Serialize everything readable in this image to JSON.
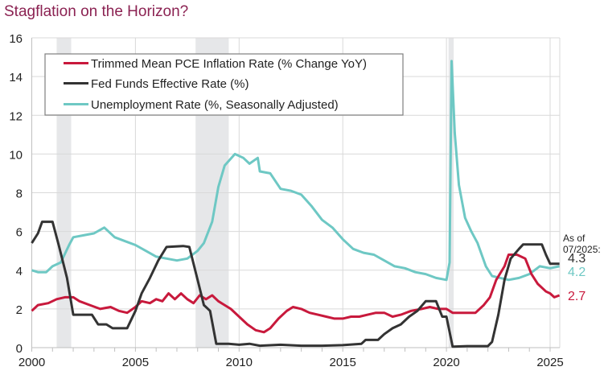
{
  "chart_data": {
    "type": "line",
    "title": "Stagflation on the Horizon?",
    "xlabel": "",
    "ylabel": "",
    "xlim": [
      2000,
      2025.45
    ],
    "ylim": [
      0,
      16
    ],
    "x_ticks": [
      "2000",
      "2005",
      "2010",
      "2015",
      "2020",
      "2025"
    ],
    "x_tick_values": [
      2000,
      2005,
      2010,
      2015,
      2020,
      2025
    ],
    "y_ticks": [
      "0",
      "2",
      "4",
      "6",
      "8",
      "10",
      "12",
      "14",
      "16"
    ],
    "y_tick_values": [
      0,
      2,
      4,
      6,
      8,
      10,
      12,
      14,
      16
    ],
    "grid": true,
    "legend_position": "top-left",
    "recessions": [
      [
        2001.2,
        2001.9
      ],
      [
        2007.9,
        2009.5
      ],
      [
        2020.1,
        2020.35
      ]
    ],
    "series": [
      {
        "name": "Trimmed Mean PCE Inflation Rate (% Change YoY)",
        "color": "#c8193c",
        "points": [
          [
            2000,
            1.9
          ],
          [
            2000.3,
            2.2
          ],
          [
            2000.8,
            2.3
          ],
          [
            2001.2,
            2.5
          ],
          [
            2001.6,
            2.6
          ],
          [
            2002,
            2.6
          ],
          [
            2002.3,
            2.4
          ],
          [
            2002.8,
            2.2
          ],
          [
            2003.3,
            2.0
          ],
          [
            2003.8,
            2.1
          ],
          [
            2004.2,
            1.9
          ],
          [
            2004.6,
            1.8
          ],
          [
            2005,
            2.1
          ],
          [
            2005.3,
            2.4
          ],
          [
            2005.7,
            2.3
          ],
          [
            2006,
            2.5
          ],
          [
            2006.3,
            2.4
          ],
          [
            2006.6,
            2.8
          ],
          [
            2006.9,
            2.5
          ],
          [
            2007.2,
            2.8
          ],
          [
            2007.5,
            2.5
          ],
          [
            2007.8,
            2.3
          ],
          [
            2008.1,
            2.7
          ],
          [
            2008.4,
            2.5
          ],
          [
            2008.7,
            2.7
          ],
          [
            2009,
            2.4
          ],
          [
            2009.3,
            2.2
          ],
          [
            2009.6,
            2.0
          ],
          [
            2010,
            1.6
          ],
          [
            2010.4,
            1.2
          ],
          [
            2010.8,
            0.9
          ],
          [
            2011.2,
            0.8
          ],
          [
            2011.5,
            1.0
          ],
          [
            2011.9,
            1.5
          ],
          [
            2012.3,
            1.9
          ],
          [
            2012.6,
            2.1
          ],
          [
            2013,
            2.0
          ],
          [
            2013.4,
            1.8
          ],
          [
            2013.8,
            1.7
          ],
          [
            2014.2,
            1.6
          ],
          [
            2014.6,
            1.5
          ],
          [
            2015,
            1.5
          ],
          [
            2015.4,
            1.6
          ],
          [
            2015.8,
            1.6
          ],
          [
            2016.2,
            1.7
          ],
          [
            2016.6,
            1.8
          ],
          [
            2017,
            1.8
          ],
          [
            2017.4,
            1.6
          ],
          [
            2017.8,
            1.7
          ],
          [
            2018.3,
            1.9
          ],
          [
            2018.8,
            2.0
          ],
          [
            2019.2,
            2.1
          ],
          [
            2019.6,
            2.0
          ],
          [
            2020,
            2.0
          ],
          [
            2020.3,
            1.8
          ],
          [
            2020.6,
            1.8
          ],
          [
            2021,
            1.8
          ],
          [
            2021.4,
            1.8
          ],
          [
            2021.8,
            2.2
          ],
          [
            2022.1,
            2.6
          ],
          [
            2022.4,
            3.5
          ],
          [
            2022.8,
            4.2
          ],
          [
            2023,
            4.8
          ],
          [
            2023.4,
            4.8
          ],
          [
            2023.8,
            4.6
          ],
          [
            2024.1,
            3.8
          ],
          [
            2024.4,
            3.3
          ],
          [
            2024.8,
            2.9
          ],
          [
            2025,
            2.8
          ],
          [
            2025.2,
            2.6
          ],
          [
            2025.45,
            2.7
          ]
        ]
      },
      {
        "name": "Fed Funds Effective Rate (%)",
        "color": "#333333",
        "points": [
          [
            2000,
            5.4
          ],
          [
            2000.3,
            5.9
          ],
          [
            2000.5,
            6.5
          ],
          [
            2001,
            6.5
          ],
          [
            2001.3,
            5.3
          ],
          [
            2001.7,
            3.6
          ],
          [
            2002,
            1.7
          ],
          [
            2002.3,
            1.7
          ],
          [
            2002.9,
            1.7
          ],
          [
            2003.2,
            1.2
          ],
          [
            2003.6,
            1.2
          ],
          [
            2003.9,
            1.0
          ],
          [
            2004.6,
            1.0
          ],
          [
            2005,
            1.9
          ],
          [
            2005.3,
            2.8
          ],
          [
            2005.7,
            3.6
          ],
          [
            2006.1,
            4.5
          ],
          [
            2006.5,
            5.2
          ],
          [
            2007.3,
            5.25
          ],
          [
            2007.6,
            5.2
          ],
          [
            2008,
            3.5
          ],
          [
            2008.3,
            2.2
          ],
          [
            2008.6,
            1.9
          ],
          [
            2008.9,
            0.2
          ],
          [
            2009.5,
            0.2
          ],
          [
            2010,
            0.15
          ],
          [
            2010.5,
            0.2
          ],
          [
            2011,
            0.1
          ],
          [
            2012,
            0.15
          ],
          [
            2013,
            0.1
          ],
          [
            2014,
            0.1
          ],
          [
            2015,
            0.13
          ],
          [
            2015.9,
            0.2
          ],
          [
            2016.1,
            0.4
          ],
          [
            2016.7,
            0.4
          ],
          [
            2017,
            0.7
          ],
          [
            2017.4,
            1.0
          ],
          [
            2017.8,
            1.2
          ],
          [
            2018.2,
            1.6
          ],
          [
            2018.6,
            1.9
          ],
          [
            2019,
            2.4
          ],
          [
            2019.5,
            2.4
          ],
          [
            2019.8,
            1.6
          ],
          [
            2020,
            1.6
          ],
          [
            2020.3,
            0.05
          ],
          [
            2021,
            0.08
          ],
          [
            2022,
            0.08
          ],
          [
            2022.2,
            0.3
          ],
          [
            2022.5,
            1.7
          ],
          [
            2022.8,
            3.5
          ],
          [
            2023.1,
            4.6
          ],
          [
            2023.5,
            5.1
          ],
          [
            2023.7,
            5.33
          ],
          [
            2024.6,
            5.33
          ],
          [
            2024.8,
            4.8
          ],
          [
            2025,
            4.33
          ],
          [
            2025.45,
            4.33
          ]
        ]
      },
      {
        "name": "Unemployment Rate (%, Seasonally Adjusted)",
        "color": "#6ec8c4",
        "points": [
          [
            2000,
            4.0
          ],
          [
            2000.3,
            3.9
          ],
          [
            2000.7,
            3.9
          ],
          [
            2001,
            4.2
          ],
          [
            2001.4,
            4.4
          ],
          [
            2001.8,
            5.3
          ],
          [
            2002,
            5.7
          ],
          [
            2002.5,
            5.8
          ],
          [
            2003,
            5.9
          ],
          [
            2003.5,
            6.2
          ],
          [
            2004,
            5.7
          ],
          [
            2004.5,
            5.5
          ],
          [
            2005,
            5.3
          ],
          [
            2005.5,
            5.0
          ],
          [
            2006,
            4.7
          ],
          [
            2006.5,
            4.6
          ],
          [
            2007,
            4.5
          ],
          [
            2007.5,
            4.6
          ],
          [
            2008,
            5.0
          ],
          [
            2008.3,
            5.4
          ],
          [
            2008.7,
            6.5
          ],
          [
            2009,
            8.3
          ],
          [
            2009.3,
            9.4
          ],
          [
            2009.8,
            10.0
          ],
          [
            2010.2,
            9.8
          ],
          [
            2010.5,
            9.5
          ],
          [
            2010.9,
            9.8
          ],
          [
            2011,
            9.1
          ],
          [
            2011.5,
            9.0
          ],
          [
            2012,
            8.2
          ],
          [
            2012.5,
            8.1
          ],
          [
            2013,
            7.9
          ],
          [
            2013.5,
            7.3
          ],
          [
            2014,
            6.6
          ],
          [
            2014.5,
            6.2
          ],
          [
            2015,
            5.6
          ],
          [
            2015.5,
            5.1
          ],
          [
            2016,
            4.9
          ],
          [
            2016.5,
            4.8
          ],
          [
            2017,
            4.5
          ],
          [
            2017.5,
            4.2
          ],
          [
            2018,
            4.1
          ],
          [
            2018.5,
            3.9
          ],
          [
            2019,
            3.8
          ],
          [
            2019.5,
            3.6
          ],
          [
            2020,
            3.5
          ],
          [
            2020.15,
            4.4
          ],
          [
            2020.25,
            14.8
          ],
          [
            2020.4,
            11.1
          ],
          [
            2020.6,
            8.4
          ],
          [
            2020.9,
            6.7
          ],
          [
            2021.2,
            6.0
          ],
          [
            2021.5,
            5.4
          ],
          [
            2021.9,
            4.2
          ],
          [
            2022.2,
            3.7
          ],
          [
            2022.6,
            3.6
          ],
          [
            2023,
            3.5
          ],
          [
            2023.5,
            3.6
          ],
          [
            2024,
            3.8
          ],
          [
            2024.5,
            4.2
          ],
          [
            2025,
            4.1
          ],
          [
            2025.45,
            4.2
          ]
        ]
      }
    ],
    "annotation": {
      "as_of_line1": "As of",
      "as_of_line2": "07/2025:",
      "values": [
        {
          "text": "4.3",
          "color": "#333333",
          "series": "Fed Funds Effective Rate (%)"
        },
        {
          "text": "4.2",
          "color": "#6ec8c4",
          "series": "Unemployment Rate (%, Seasonally Adjusted)"
        },
        {
          "text": "2.7",
          "color": "#c8193c",
          "series": "Trimmed Mean PCE Inflation Rate (% Change YoY)"
        }
      ]
    }
  },
  "colors": {
    "title": "#8b2252",
    "grid": "#d9d9d9",
    "recession": "#e6e7e9",
    "axis": "#bfbfbf"
  }
}
